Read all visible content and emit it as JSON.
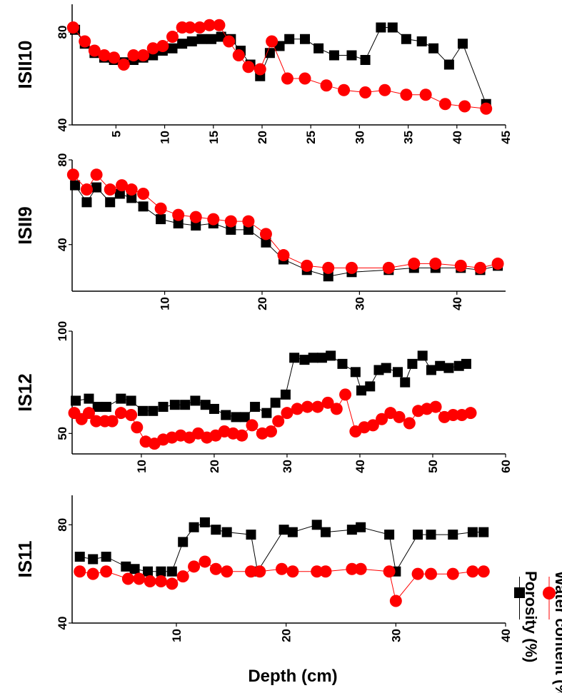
{
  "xlabel": "Depth (cm)",
  "legend": [
    {
      "name": "Porosity (%)",
      "color": "#000000",
      "marker": "square"
    },
    {
      "name": "Water content (%)",
      "color": "#ff0000",
      "marker": "circle"
    }
  ],
  "chart_data": [
    {
      "type": "scatter",
      "ylabel": "ISII10",
      "xlim": [
        0.5,
        45
      ],
      "ylim": [
        40,
        92
      ],
      "xticks": [
        5,
        10,
        15,
        20,
        25,
        30,
        35,
        40,
        45
      ],
      "yticks": [
        40,
        80
      ],
      "series": [
        {
          "name": "Porosity (%)",
          "x": [
            0.8,
            1.8,
            2.8,
            3.8,
            4.8,
            5.8,
            6.8,
            7.8,
            8.8,
            9.8,
            10.8,
            11.8,
            12.8,
            13.8,
            14.8,
            15.8,
            16.8,
            17.8,
            18.8,
            19.8,
            20.8,
            21.8,
            22.8,
            24.4,
            25.8,
            27.4,
            29.2,
            30.6,
            32.2,
            33.4,
            34.8,
            36.4,
            37.6,
            39.2,
            40.6,
            43.0
          ],
          "y": [
            81,
            75,
            71,
            69,
            68,
            67,
            68,
            69,
            70,
            72,
            73,
            75,
            76,
            77,
            77,
            78,
            77,
            72,
            66,
            61,
            71,
            74,
            77,
            77,
            73,
            70,
            70,
            68,
            82,
            82,
            77,
            76,
            73,
            66,
            75,
            49
          ]
        },
        {
          "name": "Water content (%)",
          "x": [
            0.6,
            1.8,
            2.8,
            3.8,
            4.8,
            5.8,
            6.8,
            7.8,
            8.8,
            9.8,
            10.8,
            11.8,
            12.6,
            13.6,
            14.6,
            15.6,
            16.6,
            17.6,
            18.6,
            19.8,
            21.0,
            22.6,
            24.4,
            26.6,
            28.4,
            30.6,
            32.6,
            34.8,
            36.8,
            38.8,
            40.8,
            43.0
          ],
          "y": [
            82,
            76,
            72,
            70,
            69,
            66,
            70,
            70,
            73,
            74,
            78,
            82,
            82,
            82,
            83,
            83,
            76,
            70,
            65,
            64,
            76,
            60,
            60,
            57,
            55,
            54,
            55,
            53,
            53,
            49,
            48,
            47
          ]
        }
      ]
    },
    {
      "type": "scatter",
      "ylabel": "ISII9",
      "xlim": [
        0.5,
        45
      ],
      "ylim": [
        18,
        80
      ],
      "xticks": [
        10,
        20,
        30,
        40
      ],
      "yticks": [
        40,
        80
      ],
      "series": [
        {
          "name": "Porosity (%)",
          "x": [
            0.8,
            2.0,
            3.0,
            4.4,
            5.4,
            6.6,
            7.8,
            9.6,
            11.4,
            13.2,
            15.0,
            16.8,
            18.6,
            20.4,
            22.2,
            24.6,
            26.8,
            29.2,
            33.0,
            35.6,
            37.8,
            40.4,
            42.4,
            44.2
          ],
          "y": [
            68,
            60,
            67,
            60,
            64,
            62,
            58,
            52,
            50,
            49,
            50,
            47,
            47,
            41,
            33,
            28,
            25,
            27,
            28,
            29,
            29,
            29,
            28,
            30
          ]
        },
        {
          "name": "Water content (%)",
          "x": [
            0.6,
            2.0,
            3.0,
            4.4,
            5.6,
            6.6,
            7.8,
            9.6,
            11.4,
            13.2,
            15.0,
            16.8,
            18.6,
            20.4,
            22.2,
            24.6,
            26.8,
            29.2,
            33.0,
            35.6,
            37.8,
            40.4,
            42.4,
            44.2
          ],
          "y": [
            73,
            66,
            73,
            66,
            68,
            66,
            64,
            57,
            54,
            53,
            52,
            51,
            51,
            45,
            35,
            30,
            29,
            29,
            29,
            31,
            31,
            30,
            29,
            31
          ]
        }
      ]
    },
    {
      "type": "scatter",
      "ylabel": "IS12",
      "xlim": [
        0.5,
        60
      ],
      "ylim": [
        40,
        100
      ],
      "xticks": [
        10,
        20,
        30,
        40,
        50,
        60
      ],
      "yticks": [
        50,
        100
      ],
      "series": [
        {
          "name": "Porosity (%)",
          "x": [
            1.0,
            2.8,
            4.0,
            5.2,
            7.2,
            8.6,
            10.2,
            11.6,
            13.0,
            14.6,
            16.0,
            17.4,
            18.8,
            20.0,
            21.6,
            23.0,
            24.2,
            25.6,
            27.2,
            28.4,
            29.8,
            31.0,
            32.4,
            33.6,
            34.8,
            36.0,
            37.6,
            39.4,
            40.2,
            41.4,
            42.6,
            43.6,
            45.2,
            46.2,
            47.2,
            48.6,
            49.8,
            51.0,
            52.2,
            53.6,
            54.6
          ],
          "y": [
            66,
            67,
            63,
            63,
            67,
            66,
            61,
            61,
            63,
            64,
            64,
            66,
            64,
            62,
            59,
            58,
            58,
            63,
            60,
            65,
            69,
            87,
            86,
            87,
            87,
            88,
            84,
            80,
            71,
            73,
            81,
            82,
            80,
            75,
            84,
            88,
            81,
            83,
            82,
            83,
            84
          ]
        },
        {
          "name": "Water content (%)",
          "x": [
            0.8,
            1.8,
            2.8,
            3.8,
            5.0,
            6.0,
            7.2,
            8.6,
            9.4,
            10.6,
            11.8,
            13.0,
            14.2,
            15.4,
            16.6,
            17.8,
            19.0,
            20.2,
            21.4,
            22.6,
            23.8,
            25.2,
            26.6,
            27.8,
            28.8,
            30.0,
            31.4,
            32.8,
            34.2,
            35.6,
            36.8,
            38.0,
            39.4,
            40.6,
            41.8,
            43.0,
            44.2,
            45.4,
            46.8,
            48.0,
            49.2,
            50.4,
            51.6,
            52.8,
            54.0,
            55.2
          ],
          "y": [
            60,
            57,
            60,
            56,
            56,
            56,
            60,
            59,
            53,
            46,
            45,
            47,
            48,
            49,
            48,
            50,
            48,
            49,
            51,
            50,
            49,
            54,
            50,
            51,
            56,
            60,
            62,
            63,
            63,
            65,
            62,
            69,
            51,
            53,
            54,
            57,
            60,
            58,
            55,
            61,
            62,
            63,
            58,
            59,
            59,
            60
          ]
        }
      ]
    },
    {
      "type": "scatter",
      "ylabel": "IS11",
      "xlim": [
        0.5,
        40
      ],
      "ylim": [
        40,
        92
      ],
      "xticks": [
        10,
        20,
        30,
        40
      ],
      "yticks": [
        40,
        80
      ],
      "series": [
        {
          "name": "Porosity (%)",
          "x": [
            1.2,
            2.4,
            3.6,
            5.4,
            6.2,
            7.4,
            8.6,
            9.6,
            10.6,
            11.6,
            12.6,
            13.6,
            14.6,
            16.8,
            17.4,
            19.8,
            20.6,
            22.8,
            23.6,
            26.0,
            26.8,
            29.4,
            30.0,
            32.0,
            33.2,
            35.2,
            37.0,
            38.0
          ],
          "y": [
            67,
            66,
            67,
            63,
            62,
            61,
            61,
            61,
            73,
            79,
            81,
            78,
            77,
            76,
            61,
            78,
            77,
            80,
            77,
            78,
            79,
            76,
            61,
            76,
            76,
            76,
            77,
            77
          ]
        },
        {
          "name": "Water content (%)",
          "x": [
            1.2,
            2.4,
            3.6,
            5.6,
            6.6,
            7.6,
            8.6,
            9.6,
            10.6,
            11.6,
            12.6,
            13.6,
            14.6,
            16.8,
            17.6,
            19.6,
            20.6,
            22.8,
            23.6,
            26.0,
            26.8,
            29.4,
            30.0,
            32.0,
            33.2,
            35.2,
            37.0,
            38.0
          ],
          "y": [
            61,
            60,
            61,
            58,
            58,
            57,
            57,
            56,
            59,
            63,
            65,
            62,
            61,
            61,
            61,
            62,
            61,
            61,
            61,
            62,
            62,
            61,
            49,
            60,
            60,
            60,
            61,
            61
          ]
        }
      ]
    }
  ]
}
